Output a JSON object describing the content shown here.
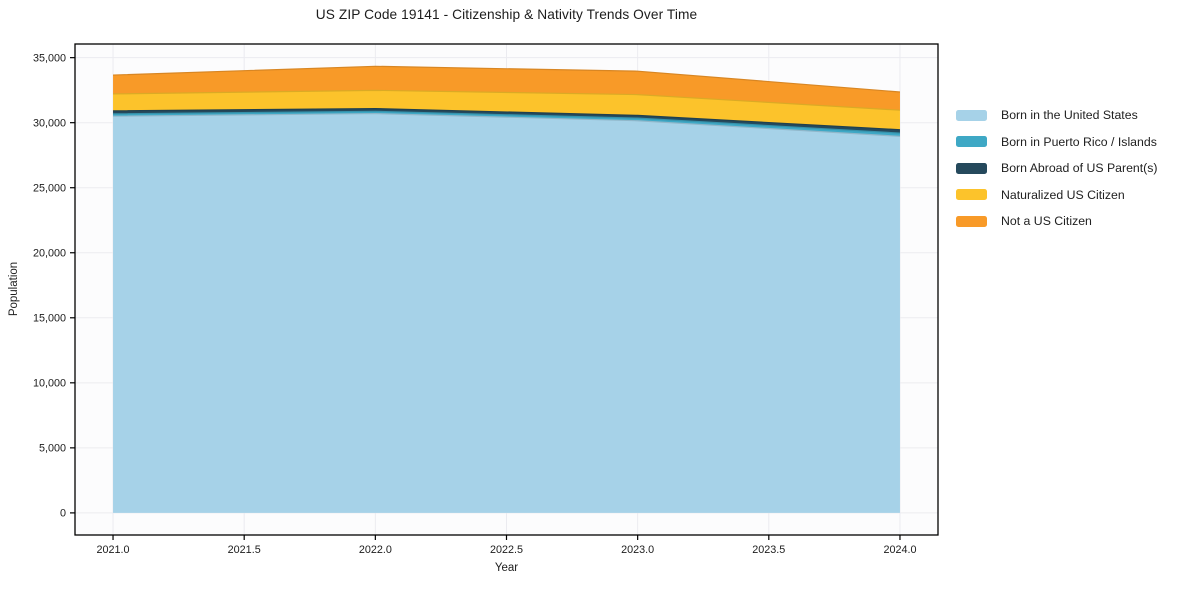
{
  "chart_data": {
    "type": "area",
    "stacked": true,
    "title": "US ZIP Code 19141 - Citizenship & Nativity Trends Over Time",
    "xlabel": "Year",
    "ylabel": "Population",
    "x": [
      2021,
      2022,
      2023,
      2024
    ],
    "series": [
      {
        "name": "Born in the United States",
        "color": "#a6d2e8",
        "values": [
          30500,
          30700,
          30150,
          28950
        ]
      },
      {
        "name": "Born in Puerto Rico / Islands",
        "color": "#3ea8c5",
        "values": [
          180,
          175,
          200,
          250
        ]
      },
      {
        "name": "Born Abroad of US Parent(s)",
        "color": "#25495c",
        "values": [
          230,
          210,
          210,
          260
        ]
      },
      {
        "name": "Naturalized US Citizen",
        "color": "#fcc32b",
        "values": [
          1300,
          1400,
          1600,
          1500
        ]
      },
      {
        "name": "Not a US Citizen",
        "color": "#f89a28",
        "values": [
          1450,
          1850,
          1800,
          1400
        ]
      }
    ],
    "totals": [
      33660,
      34335,
      33960,
      32360
    ],
    "xlim": [
      2020.855,
      2024.145
    ],
    "ylim": [
      -1700,
      36050
    ],
    "xticks": {
      "values": [
        2021.0,
        2021.5,
        2022.0,
        2022.5,
        2023.0,
        2023.5,
        2024.0
      ],
      "labels": [
        "2021.0",
        "2021.5",
        "2022.0",
        "2022.5",
        "2023.0",
        "2023.5",
        "2024.0"
      ]
    },
    "yticks": {
      "values": [
        0,
        5000,
        10000,
        15000,
        20000,
        25000,
        30000,
        35000
      ],
      "labels": [
        "0",
        "5,000",
        "10,000",
        "15,000",
        "20,000",
        "25,000",
        "30,000",
        "35,000"
      ]
    },
    "grid": true,
    "legend_position": "right-outside"
  },
  "style": {
    "plot_bg": "#fcfcfd",
    "grid_color": "#ebebf0",
    "axis_color": "#000000",
    "tick_text_color": "#1c1c1c"
  }
}
